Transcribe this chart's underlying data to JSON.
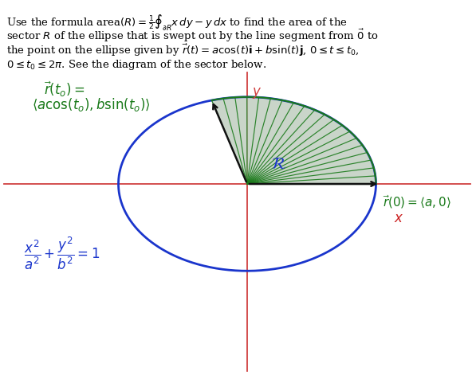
{
  "background_color": "#ffffff",
  "ellipse_a": 1.7,
  "ellipse_b": 1.15,
  "t0": 1.85,
  "num_lines": 20,
  "ellipse_color": "#1a35cc",
  "sector_fill_color": "#b8c8b8",
  "sector_line_color": "#1a7a1a",
  "axis_color": "#d04040",
  "arrow_color": "#111111",
  "text_color_green": "#1a7a1a",
  "text_color_blue": "#1a35cc",
  "text_color_red": "#cc2222",
  "figsize": [
    5.97,
    4.71
  ],
  "dpi": 100
}
